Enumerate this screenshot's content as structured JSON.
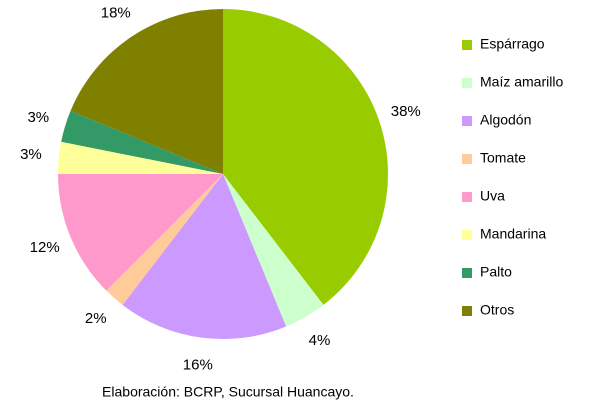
{
  "chart_data": {
    "type": "pie",
    "categories": [
      "Espárrago",
      "Maíz amarillo",
      "Algodón",
      "Tomate",
      "Uva",
      "Mandarina",
      "Palto",
      "Otros"
    ],
    "values": [
      38,
      4,
      16,
      2,
      12,
      3,
      3,
      18
    ],
    "value_labels": [
      "38%",
      "4%",
      "16%",
      "2%",
      "12%",
      "3%",
      "3%",
      "18%"
    ],
    "colors": [
      "#99cc00",
      "#ccffcc",
      "#cc99ff",
      "#ffcc99",
      "#ff99cc",
      "#ffff99",
      "#339966",
      "#808000"
    ],
    "legend": "right",
    "note": "Elaboración: BCRP, Sucursal Huancayo."
  }
}
